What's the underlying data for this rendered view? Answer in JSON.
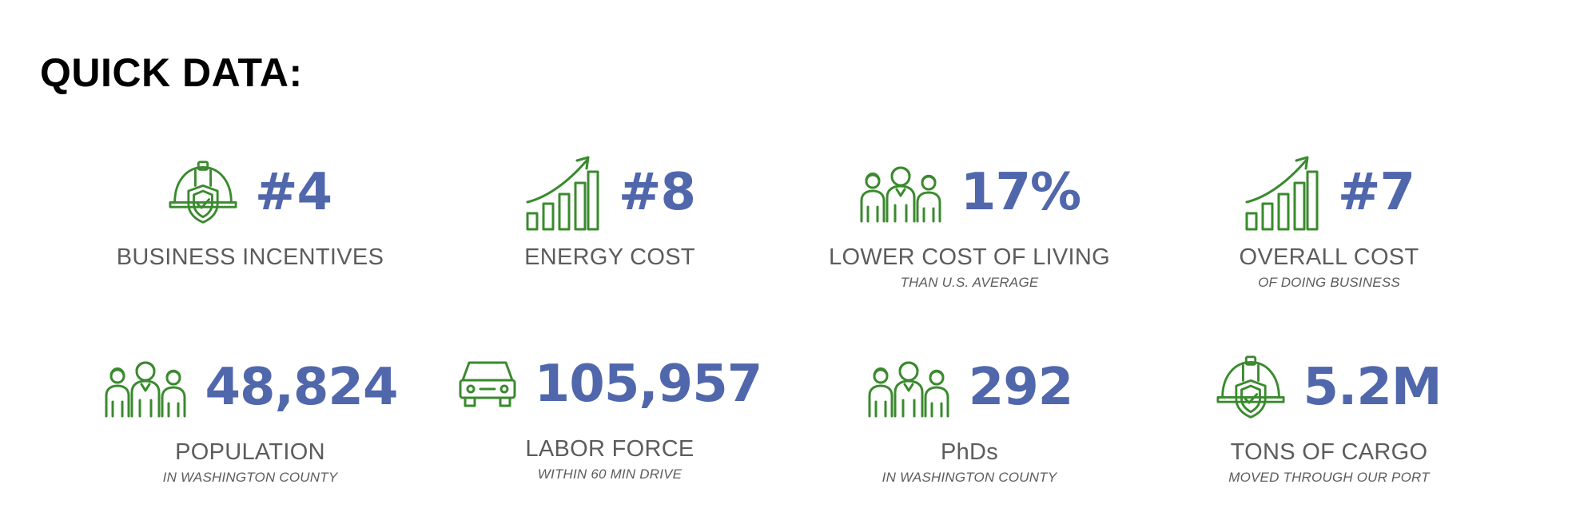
{
  "title": "QUICK DATA:",
  "stats": [
    {
      "icon": "helmet-shield-icon",
      "value": "#4",
      "label": "BUSINESS INCENTIVES",
      "sub": ""
    },
    {
      "icon": "growth-chart-icon",
      "value": "#8",
      "label": "ENERGY COST",
      "sub": ""
    },
    {
      "icon": "people-icon",
      "value": "17%",
      "label": "LOWER COST OF LIVING",
      "sub": "THAN U.S. AVERAGE"
    },
    {
      "icon": "growth-chart-icon",
      "value": "#7",
      "label": "OVERALL COST",
      "sub": "OF DOING BUSINESS"
    },
    {
      "icon": "people-icon",
      "value": "48,824",
      "label": "POPULATION",
      "sub": "IN WASHINGTON COUNTY"
    },
    {
      "icon": "car-icon",
      "value": "105,957",
      "label": "LABOR FORCE",
      "sub": "WITHIN 60 MIN DRIVE"
    },
    {
      "icon": "people-icon",
      "value": "292",
      "label": "PhDs",
      "sub": "IN WASHINGTON COUNTY"
    },
    {
      "icon": "helmet-shield-icon",
      "value": "5.2M",
      "label": "TONS OF CARGO",
      "sub": "MOVED THROUGH OUR PORT"
    }
  ],
  "colors": {
    "accent": "#5067ac",
    "icon": "#3a8a2e",
    "label": "#5c5c5c"
  }
}
